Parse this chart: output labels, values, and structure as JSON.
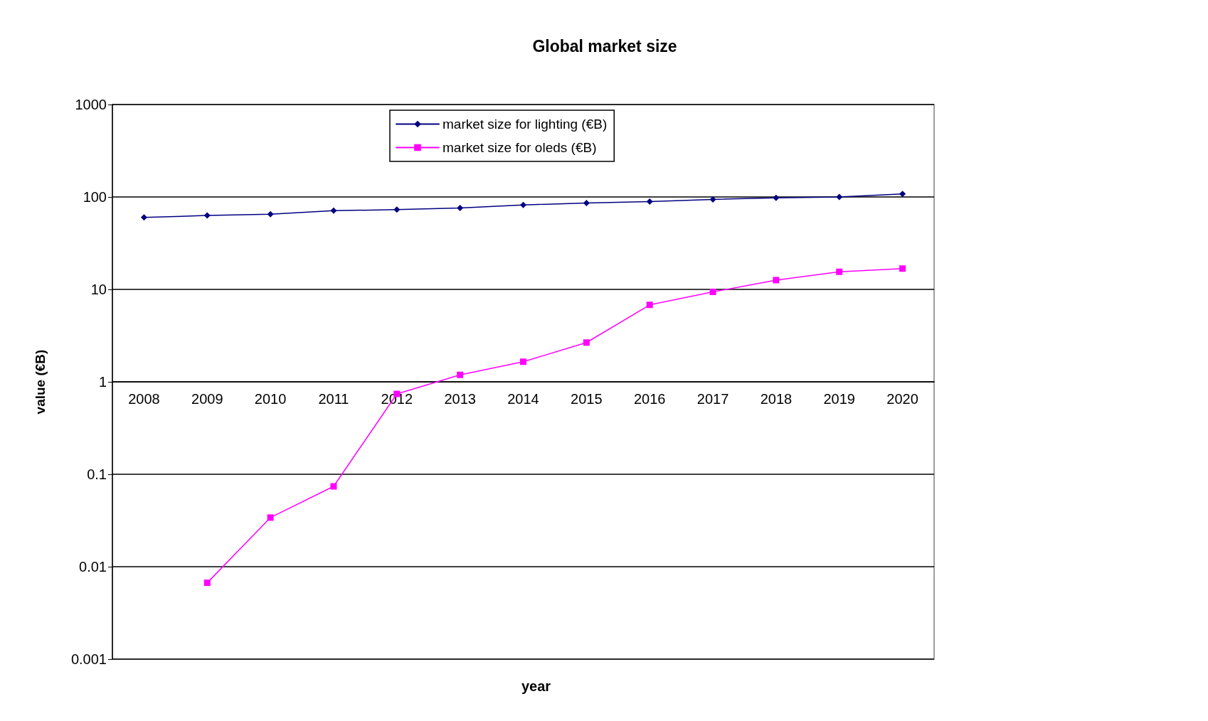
{
  "chart_data": {
    "type": "line",
    "title": "Global market size",
    "xlabel": "year",
    "ylabel": "value (€B)",
    "categories": [
      "2008",
      "2009",
      "2010",
      "2011",
      "2012",
      "2013",
      "2014",
      "2015",
      "2016",
      "2017",
      "2018",
      "2019",
      "2020"
    ],
    "series": [
      {
        "name": "market size for lighting (€B)",
        "color": "#000080",
        "marker": "diamond",
        "values": [
          60,
          63,
          65,
          71,
          73,
          76,
          82,
          86,
          89,
          94,
          98,
          100,
          108
        ]
      },
      {
        "name": "market size for oleds (€B)",
        "color": "#ff00ff",
        "marker": "square",
        "values": [
          null,
          0.0067,
          0.034,
          0.074,
          0.74,
          1.19,
          1.65,
          2.66,
          6.8,
          9.4,
          12.6,
          15.5,
          16.8
        ]
      }
    ],
    "log": true,
    "ylim": [
      0.001,
      1000
    ],
    "yticks": [
      0.001,
      0.01,
      0.1,
      1,
      10,
      100,
      1000
    ],
    "grid": "y",
    "legend": "top",
    "line_style": "solid"
  }
}
